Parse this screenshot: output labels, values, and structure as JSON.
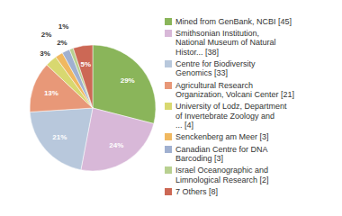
{
  "chart_data": {
    "type": "pie",
    "categories": [
      "Mined from GenBank, NCBI [45]",
      "Smithsonian Institution,\nNational Museum of Natural\nHistor... [38]",
      "Centre for Biodiversity\nGenomics [33]",
      "Agricultural Research\nOrganization, Volcani Center [21]",
      "University of Lodz, Department\nof Invertebrate Zoology and\n... [4]",
      "Senckenberg am Meer [3]",
      "Canadian Centre for DNA\nBarcoding [3]",
      "Israel Oceanographic and\nLimnological Research [2]",
      "7 Others [8]"
    ],
    "values": [
      29,
      24,
      21,
      13,
      3,
      2,
      2,
      1,
      5
    ],
    "value_labels": [
      "29%",
      "24%",
      "21%",
      "13%",
      "3%",
      "2%",
      "2%",
      "1%",
      "5%"
    ],
    "colors": [
      "#8ab55a",
      "#d8b8d8",
      "#b8c8dc",
      "#e89878",
      "#d8d870",
      "#f0b860",
      "#a0b0d0",
      "#b8d090",
      "#cc6855"
    ],
    "data_labels": true,
    "legend": "right"
  }
}
